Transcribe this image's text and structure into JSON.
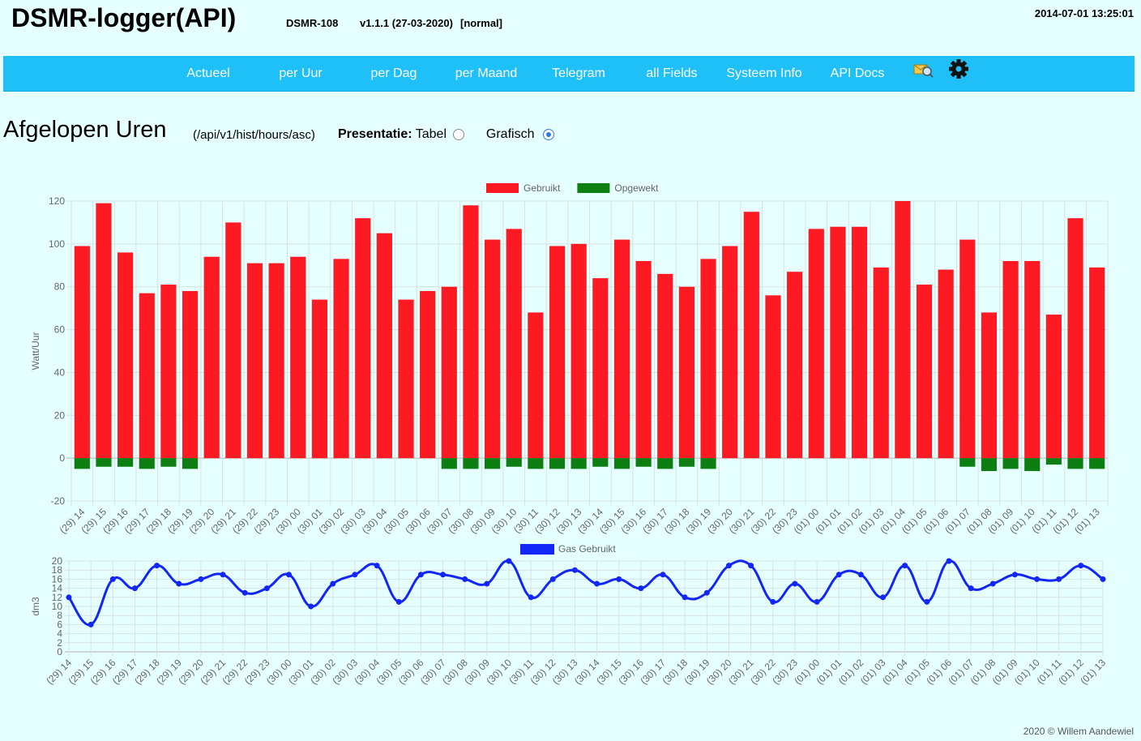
{
  "header": {
    "title": "DSMR-logger(API)",
    "device": "DSMR-108",
    "version": "v1.1.1 (27-03-2020)",
    "mode": "[normal]",
    "datetime": "2014-07-01 13:25:01"
  },
  "nav": {
    "items": [
      "Actueel",
      "per Uur",
      "per Dag",
      "per Maand",
      "Telegram",
      "all Fields",
      "Systeem Info",
      "API Docs"
    ],
    "icons": [
      "update-icon",
      "gear-icon"
    ],
    "bar_color": "#1fc0f7"
  },
  "page": {
    "title": "Afgelopen Uren",
    "api_path": "(/api/v1/hist/hours/asc)",
    "presentation_label": "Presentatie:",
    "option_table": "Tabel",
    "option_graph": "Grafisch",
    "selected": "Grafisch"
  },
  "footer": {
    "text": "2020 © Willem Aandewiel"
  },
  "chart_data": [
    {
      "type": "bar",
      "stacked": true,
      "ylabel": "Watt/Uur",
      "ylim": [
        -20,
        120
      ],
      "yticks": [
        -20,
        0,
        20,
        40,
        60,
        80,
        100,
        120
      ],
      "grid": true,
      "legend_position": "top",
      "categories": [
        "(29) 14",
        "(29) 15",
        "(29) 16",
        "(29) 17",
        "(29) 18",
        "(29) 19",
        "(29) 20",
        "(29) 21",
        "(29) 22",
        "(29) 23",
        "(30) 00",
        "(30) 01",
        "(30) 02",
        "(30) 03",
        "(30) 04",
        "(30) 05",
        "(30) 06",
        "(30) 07",
        "(30) 08",
        "(30) 09",
        "(30) 10",
        "(30) 11",
        "(30) 12",
        "(30) 13",
        "(30) 14",
        "(30) 15",
        "(30) 16",
        "(30) 17",
        "(30) 18",
        "(30) 19",
        "(30) 20",
        "(30) 21",
        "(30) 22",
        "(30) 23",
        "(01) 00",
        "(01) 01",
        "(01) 02",
        "(01) 03",
        "(01) 04",
        "(01) 05",
        "(01) 06",
        "(01) 07",
        "(01) 08",
        "(01) 09",
        "(01) 10",
        "(01) 11",
        "(01) 12",
        "(01) 13"
      ],
      "series": [
        {
          "name": "Gebruikt",
          "color": "#fe1a22",
          "values": [
            99,
            119,
            96,
            77,
            81,
            78,
            94,
            110,
            91,
            91,
            94,
            74,
            93,
            112,
            105,
            74,
            78,
            80,
            118,
            102,
            107,
            68,
            99,
            100,
            84,
            102,
            92,
            86,
            80,
            93,
            99,
            115,
            76,
            87,
            107,
            108,
            108,
            89,
            120,
            81,
            88,
            102,
            68,
            92,
            92,
            67,
            112,
            89
          ]
        },
        {
          "name": "Opgewekt",
          "color": "#0d7f12",
          "values": [
            -5,
            -4,
            -4,
            -5,
            -4,
            -5,
            0,
            0,
            0,
            0,
            0,
            0,
            0,
            0,
            0,
            0,
            0,
            -5,
            -5,
            -5,
            -4,
            -5,
            -5,
            -5,
            -4,
            -5,
            -4,
            -5,
            -4,
            -5,
            0,
            0,
            0,
            0,
            0,
            0,
            0,
            0,
            0,
            0,
            0,
            -4,
            -6,
            -5,
            -6,
            -3,
            -5,
            -5
          ]
        }
      ]
    },
    {
      "type": "line",
      "ylabel": "dm3",
      "ylim": [
        0,
        20
      ],
      "yticks": [
        0,
        2,
        4,
        6,
        8,
        10,
        12,
        14,
        16,
        18,
        20
      ],
      "grid": true,
      "legend_position": "top",
      "categories": [
        "(29) 14",
        "(29) 15",
        "(29) 16",
        "(29) 17",
        "(29) 18",
        "(29) 19",
        "(29) 20",
        "(29) 21",
        "(29) 22",
        "(29) 23",
        "(30) 00",
        "(30) 01",
        "(30) 02",
        "(30) 03",
        "(30) 04",
        "(30) 05",
        "(30) 06",
        "(30) 07",
        "(30) 08",
        "(30) 09",
        "(30) 10",
        "(30) 11",
        "(30) 12",
        "(30) 13",
        "(30) 14",
        "(30) 15",
        "(30) 16",
        "(30) 17",
        "(30) 18",
        "(30) 19",
        "(30) 20",
        "(30) 21",
        "(30) 22",
        "(30) 23",
        "(01) 00",
        "(01) 01",
        "(01) 02",
        "(01) 03",
        "(01) 04",
        "(01) 05",
        "(01) 06",
        "(01) 07",
        "(01) 08",
        "(01) 09",
        "(01) 10",
        "(01) 11",
        "(01) 12",
        "(01) 13"
      ],
      "series": [
        {
          "name": "Gas Gebruikt",
          "color": "#1226f5",
          "values": [
            12,
            6,
            16,
            14,
            19,
            15,
            16,
            17,
            13,
            14,
            17,
            10,
            15,
            17,
            19,
            11,
            17,
            17,
            16,
            15,
            20,
            12,
            16,
            18,
            15,
            16,
            14,
            17,
            12,
            13,
            19,
            19,
            11,
            15,
            11,
            17,
            17,
            12,
            19,
            11,
            20,
            14,
            15,
            17,
            16,
            16,
            19,
            16
          ]
        }
      ]
    }
  ]
}
